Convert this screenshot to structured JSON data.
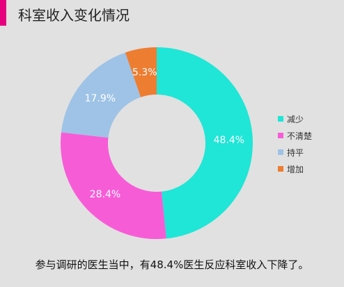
{
  "header": {
    "title": "科室收入变化情况",
    "accent_color": "#e6007e"
  },
  "chart_data": {
    "type": "pie",
    "donut": true,
    "title": "",
    "categories": [
      "减少",
      "不清楚",
      "持平",
      "增加"
    ],
    "values": [
      48.4,
      28.4,
      17.9,
      5.3
    ],
    "labels": [
      "48.4%",
      "28.4%",
      "17.9%",
      "5.3%"
    ],
    "colors": [
      "#1fe6d6",
      "#f75cd7",
      "#9ec3e6",
      "#ed7d31"
    ],
    "legend_position": "right"
  },
  "footer": {
    "caption": "参与调研的医生当中，有48.4%医生反应科室收入下降了。"
  }
}
